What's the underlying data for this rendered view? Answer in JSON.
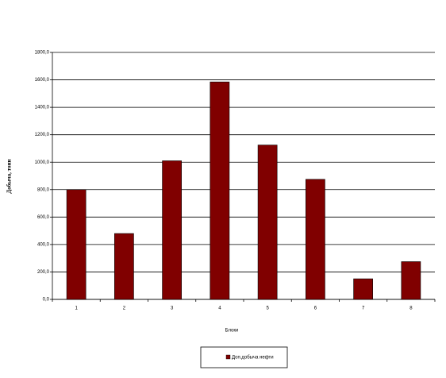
{
  "chart_data": {
    "type": "bar",
    "x_label": "Блоки",
    "y_label": "Добыча, тонн",
    "categories": [
      "1",
      "2",
      "3",
      "4",
      "5",
      "6",
      "7",
      "8"
    ],
    "series": [
      {
        "name": "Доп.добыча нефти",
        "color": "#800000",
        "values": [
          800,
          480,
          1010,
          1585,
          1125,
          875,
          150,
          275
        ]
      }
    ],
    "ylim": [
      0,
      1800
    ],
    "yticks": [
      {
        "value": 0,
        "label": "0,0"
      },
      {
        "value": 200,
        "label": "200,0"
      },
      {
        "value": 400,
        "label": "400,0"
      },
      {
        "value": 600,
        "label": "600,0"
      },
      {
        "value": 800,
        "label": "800,0"
      },
      {
        "value": 1000,
        "label": "1000,0"
      },
      {
        "value": 1200,
        "label": "1200,0"
      },
      {
        "value": 1400,
        "label": "1400,0"
      },
      {
        "value": 1600,
        "label": "1600,0"
      },
      {
        "value": 1800,
        "label": "1800,0"
      }
    ],
    "grid": true
  }
}
